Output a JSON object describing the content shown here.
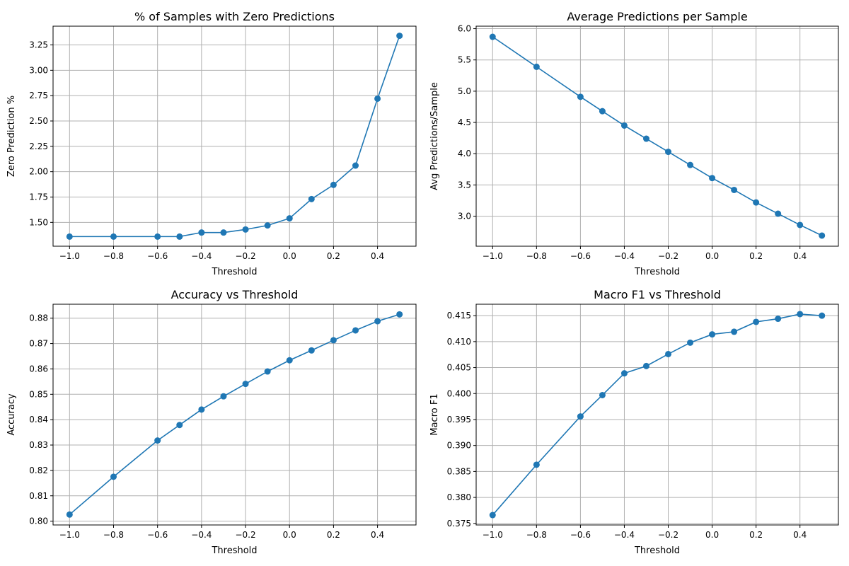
{
  "chart_data": [
    {
      "type": "line",
      "title": "% of Samples with Zero Predictions",
      "xlabel": "Threshold",
      "ylabel": "Zero Prediction %",
      "xlim": [
        -1.075,
        0.575
      ],
      "ylim": [
        1.265,
        3.435
      ],
      "xticks": [
        "−1.0",
        "−0.8",
        "−0.6",
        "−0.4",
        "−0.2",
        "0.0",
        "0.2",
        "0.4"
      ],
      "xtick_values": [
        -1.0,
        -0.8,
        -0.6,
        -0.4,
        -0.2,
        0.0,
        0.2,
        0.4
      ],
      "yticks": [
        "1.50",
        "1.75",
        "2.00",
        "2.25",
        "2.50",
        "2.75",
        "3.00",
        "3.25"
      ],
      "ytick_values": [
        1.5,
        1.75,
        2.0,
        2.25,
        2.5,
        2.75,
        3.0,
        3.25
      ],
      "grid": true,
      "color": "#1f77b4",
      "series": [
        {
          "x": [
            -1.0,
            -0.8,
            -0.6,
            -0.5,
            -0.4,
            -0.3,
            -0.2,
            -0.1,
            0.0,
            0.1,
            0.2,
            0.3,
            0.4,
            0.5
          ],
          "y": [
            1.36,
            1.36,
            1.36,
            1.36,
            1.4,
            1.4,
            1.43,
            1.47,
            1.54,
            1.73,
            1.87,
            2.06,
            2.72,
            3.34
          ]
        }
      ]
    },
    {
      "type": "line",
      "title": "Average Predictions per Sample",
      "xlabel": "Threshold",
      "ylabel": "Avg Predictions/Sample",
      "xlim": [
        -1.075,
        0.575
      ],
      "ylim": [
        2.52,
        6.04
      ],
      "xticks": [
        "−1.0",
        "−0.8",
        "−0.6",
        "−0.4",
        "−0.2",
        "0.0",
        "0.2",
        "0.4"
      ],
      "xtick_values": [
        -1.0,
        -0.8,
        -0.6,
        -0.4,
        -0.2,
        0.0,
        0.2,
        0.4
      ],
      "yticks": [
        "3.0",
        "3.5",
        "4.0",
        "4.5",
        "5.0",
        "5.5",
        "6.0"
      ],
      "ytick_values": [
        3.0,
        3.5,
        4.0,
        4.5,
        5.0,
        5.5,
        6.0
      ],
      "grid": true,
      "color": "#1f77b4",
      "series": [
        {
          "x": [
            -1.0,
            -0.8,
            -0.6,
            -0.5,
            -0.4,
            -0.3,
            -0.2,
            -0.1,
            0.0,
            0.1,
            0.2,
            0.3,
            0.4,
            0.5
          ],
          "y": [
            5.87,
            5.39,
            4.91,
            4.68,
            4.45,
            4.24,
            4.03,
            3.82,
            3.61,
            3.42,
            3.22,
            3.04,
            2.86,
            2.69
          ]
        }
      ]
    },
    {
      "type": "line",
      "title": "Accuracy vs Threshold",
      "xlabel": "Threshold",
      "ylabel": "Accuracy",
      "xlim": [
        -1.075,
        0.575
      ],
      "ylim": [
        0.7985,
        0.8855
      ],
      "xticks": [
        "−1.0",
        "−0.8",
        "−0.6",
        "−0.4",
        "−0.2",
        "0.0",
        "0.2",
        "0.4"
      ],
      "xtick_values": [
        -1.0,
        -0.8,
        -0.6,
        -0.4,
        -0.2,
        0.0,
        0.2,
        0.4
      ],
      "yticks": [
        "0.80",
        "0.81",
        "0.82",
        "0.83",
        "0.84",
        "0.85",
        "0.86",
        "0.87",
        "0.88"
      ],
      "ytick_values": [
        0.8,
        0.81,
        0.82,
        0.83,
        0.84,
        0.85,
        0.86,
        0.87,
        0.88
      ],
      "grid": true,
      "color": "#1f77b4",
      "series": [
        {
          "x": [
            -1.0,
            -0.8,
            -0.6,
            -0.5,
            -0.4,
            -0.3,
            -0.2,
            -0.1,
            0.0,
            0.1,
            0.2,
            0.3,
            0.4,
            0.5
          ],
          "y": [
            0.8026,
            0.8175,
            0.8318,
            0.8379,
            0.844,
            0.8492,
            0.8541,
            0.859,
            0.8634,
            0.8673,
            0.8713,
            0.8752,
            0.8788,
            0.8815
          ]
        }
      ]
    },
    {
      "type": "line",
      "title": "Macro F1 vs Threshold",
      "xlabel": "Threshold",
      "ylabel": "Macro F1",
      "xlim": [
        -1.075,
        0.575
      ],
      "ylim": [
        0.3747,
        0.4172
      ],
      "xticks": [
        "−1.0",
        "−0.8",
        "−0.6",
        "−0.4",
        "−0.2",
        "0.0",
        "0.2",
        "0.4"
      ],
      "xtick_values": [
        -1.0,
        -0.8,
        -0.6,
        -0.4,
        -0.2,
        0.0,
        0.2,
        0.4
      ],
      "yticks": [
        "0.375",
        "0.380",
        "0.385",
        "0.390",
        "0.395",
        "0.400",
        "0.405",
        "0.410",
        "0.415"
      ],
      "ytick_values": [
        0.375,
        0.38,
        0.385,
        0.39,
        0.395,
        0.4,
        0.405,
        0.41,
        0.415
      ],
      "grid": true,
      "color": "#1f77b4",
      "series": [
        {
          "x": [
            -1.0,
            -0.8,
            -0.6,
            -0.5,
            -0.4,
            -0.3,
            -0.2,
            -0.1,
            0.0,
            0.1,
            0.2,
            0.3,
            0.4,
            0.5
          ],
          "y": [
            0.3766,
            0.3863,
            0.3956,
            0.3997,
            0.4039,
            0.4053,
            0.4076,
            0.4098,
            0.4114,
            0.4119,
            0.4138,
            0.4144,
            0.4153,
            0.415
          ]
        }
      ]
    }
  ]
}
